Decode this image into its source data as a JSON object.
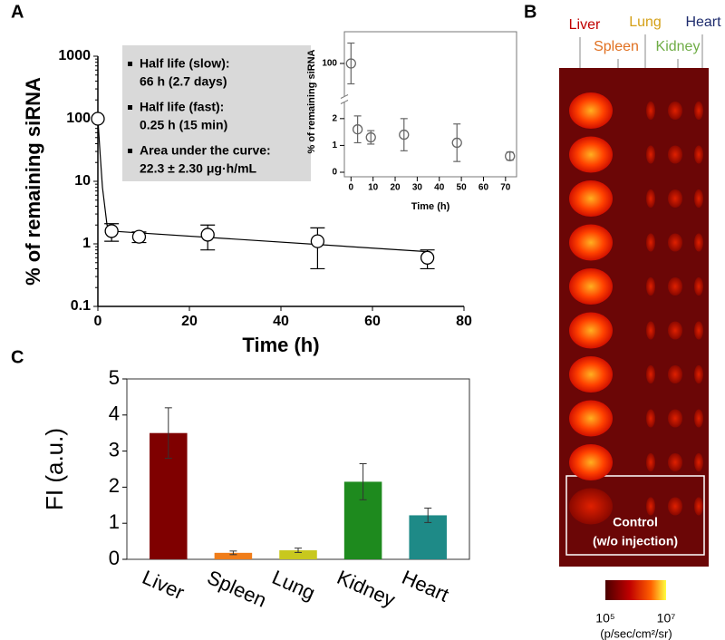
{
  "panel_labels": [
    "A",
    "B",
    "C"
  ],
  "chart_data": [
    {
      "type": "scatter",
      "ylabel": "% of remaining siRNA",
      "xlabel": "Time (h)",
      "x": [
        0,
        3,
        9,
        24,
        48,
        72
      ],
      "values": [
        100,
        1.6,
        1.3,
        1.4,
        1.1,
        0.6
      ],
      "errors": [
        null,
        0.5,
        0.25,
        0.6,
        0.7,
        0.2
      ],
      "fit": {
        "x": [
          0,
          0.5,
          1,
          2,
          3,
          72
        ],
        "values": [
          100,
          27,
          8,
          2,
          1.6,
          0.75
        ]
      },
      "xlim": [
        0,
        80
      ],
      "ylim": [
        0.1,
        1000
      ],
      "xticks": [
        0,
        20,
        40,
        60,
        80
      ],
      "yticks": [
        0.1,
        1,
        10,
        100,
        1000
      ],
      "log_y": true,
      "annotations": [
        [
          "Half life (slow):",
          "66 h (2.7 days)"
        ],
        [
          "Half life (fast):",
          "0.25 h (15 min)"
        ],
        [
          "Area under the curve:",
          "22.3 ± 2.30 μg·h/mL"
        ]
      ]
    },
    {
      "type": "scatter",
      "ylabel": "% of remaining siRNA",
      "xlabel": "Time (h)",
      "x": [
        0,
        3,
        9,
        24,
        48,
        72
      ],
      "values": [
        100,
        1.6,
        1.3,
        1.4,
        1.1,
        0.6
      ],
      "errors": [
        15,
        0.5,
        0.25,
        0.6,
        0.7,
        0.15
      ],
      "xlim": [
        -3,
        75
      ],
      "ylim": [
        0,
        2.4
      ],
      "ylim_upper": [
        80,
        120
      ],
      "xticks": [
        0,
        10,
        20,
        30,
        40,
        50,
        60,
        70
      ],
      "yticks": [
        0,
        1,
        2,
        100
      ],
      "axis_break": true
    },
    {
      "type": "bar",
      "ylabel": "FI (a.u.)",
      "categories": [
        "Liver",
        "Spleen",
        "Lung",
        "Kidney",
        "Heart"
      ],
      "values": [
        3.5,
        0.18,
        0.25,
        2.15,
        1.22
      ],
      "errors": [
        0.7,
        0.05,
        0.06,
        0.5,
        0.2
      ],
      "colors": [
        "#7f0000",
        "#f07d1a",
        "#c8c81e",
        "#1e8a1e",
        "#1e8a87"
      ],
      "ylim": [
        0,
        5
      ],
      "yticks": [
        0,
        1,
        2,
        3,
        4,
        5
      ]
    }
  ],
  "imaging": {
    "organs": [
      {
        "label": "Liver",
        "color": "#c00000"
      },
      {
        "label": "Spleen",
        "color": "#e07020"
      },
      {
        "label": "Lung",
        "color": "#d4a017"
      },
      {
        "label": "Kidney",
        "color": "#70ad47"
      },
      {
        "label": "Heart",
        "color": "#1f2d6e"
      }
    ],
    "control_label": [
      "Control",
      "(w/o injection)"
    ],
    "colorbar_labels": [
      "10⁵",
      "10⁷"
    ],
    "colorbar_unit": "(p/sec/cm²/sr)"
  }
}
